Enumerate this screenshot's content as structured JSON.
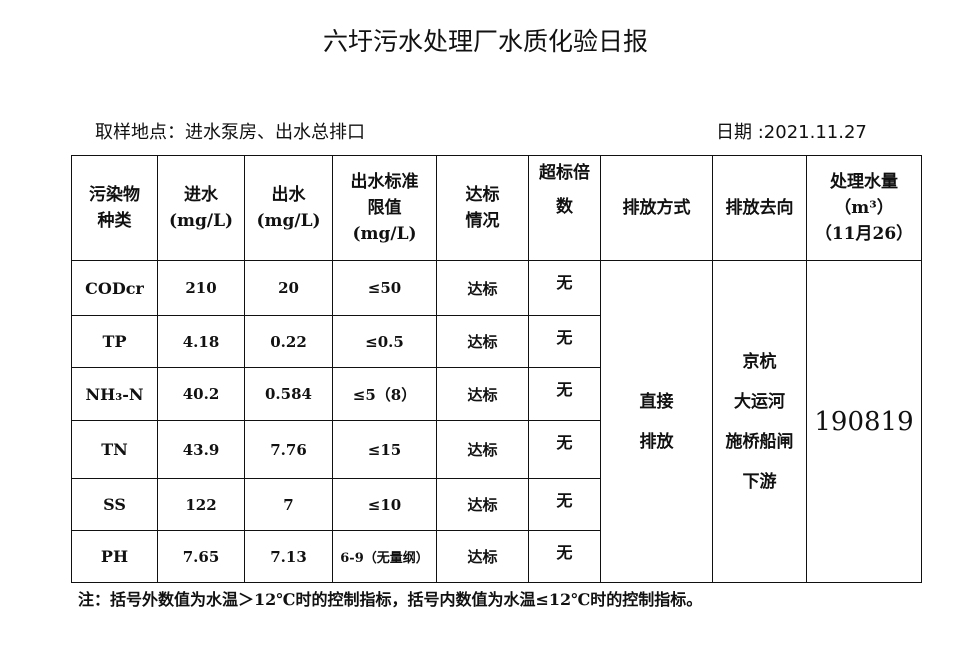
{
  "title": "六圩污水处理厂水质化验日报",
  "sampling_location": "取样地点：进水泵房、出水总排口",
  "date": "日期 :2021.11.27",
  "headers": {
    "pollutant": [
      "污染物",
      "种类"
    ],
    "influent": [
      "进水",
      "(mg/L)"
    ],
    "effluent": [
      "出水",
      "(mg/L)"
    ],
    "standard": [
      "出水标准",
      "限值",
      "(mg/L)"
    ],
    "compliance": [
      "达标",
      "情况"
    ],
    "exceed": [
      "超标倍",
      "数"
    ],
    "discharge_method": "排放方式",
    "discharge_direction": "排放去向",
    "volume": [
      "处理水量",
      "（m³）",
      "（11月26）"
    ]
  },
  "rows": [
    {
      "name": "CODcr",
      "in": "210",
      "out": "20",
      "std": "≤50",
      "status": "达标",
      "exceed": "无"
    },
    {
      "name": "TP",
      "in": "4.18",
      "out": "0.22",
      "std": "≤0.5",
      "status": "达标",
      "exceed": "无"
    },
    {
      "name": "NH₃-N",
      "in": "40.2",
      "out": "0.584",
      "std": "≤5（8）",
      "status": "达标",
      "exceed": "无"
    },
    {
      "name": "TN",
      "in": "43.9",
      "out": "7.76",
      "std": "≤15",
      "status": "达标",
      "exceed": "无"
    },
    {
      "name": "SS",
      "in": "122",
      "out": "7",
      "std": "≤10",
      "status": "达标",
      "exceed": "无"
    },
    {
      "name": "PH",
      "in": "7.65",
      "out": "7.13",
      "std": "6-9（无量纲）",
      "status": "达标",
      "exceed": "无"
    }
  ],
  "discharge_method": [
    "直接",
    "排放"
  ],
  "discharge_direction": [
    "京杭",
    "大运河",
    "施桥船闸",
    "下游"
  ],
  "volume": "190819",
  "note": "注：括号外数值为水温＞12℃时的控制指标，括号内数值为水温≤12℃时的控制指标。"
}
